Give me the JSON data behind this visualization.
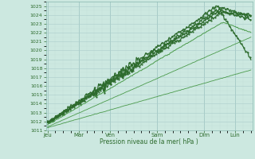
{
  "xlabel": "Pression niveau de la mer( hPa )",
  "bg_color": "#cce8e0",
  "grid_color": "#aacccc",
  "grid_color_minor": "#c0dcd8",
  "line_color_main": "#2d6b2d",
  "line_color_thin": "#4a9a4a",
  "ylim": [
    1011,
    1025.5
  ],
  "yticks": [
    1011,
    1012,
    1013,
    1014,
    1015,
    1016,
    1017,
    1018,
    1019,
    1020,
    1021,
    1022,
    1023,
    1024,
    1025
  ],
  "day_labels": [
    "Jeu",
    "Mar",
    "Ven",
    "Sam",
    "Dim",
    "Lun"
  ],
  "day_positions": [
    0.0,
    1.0,
    2.0,
    3.5,
    5.0,
    6.0
  ],
  "xlim": [
    -0.05,
    6.55
  ],
  "figsize": [
    3.2,
    2.0
  ],
  "dpi": 100
}
